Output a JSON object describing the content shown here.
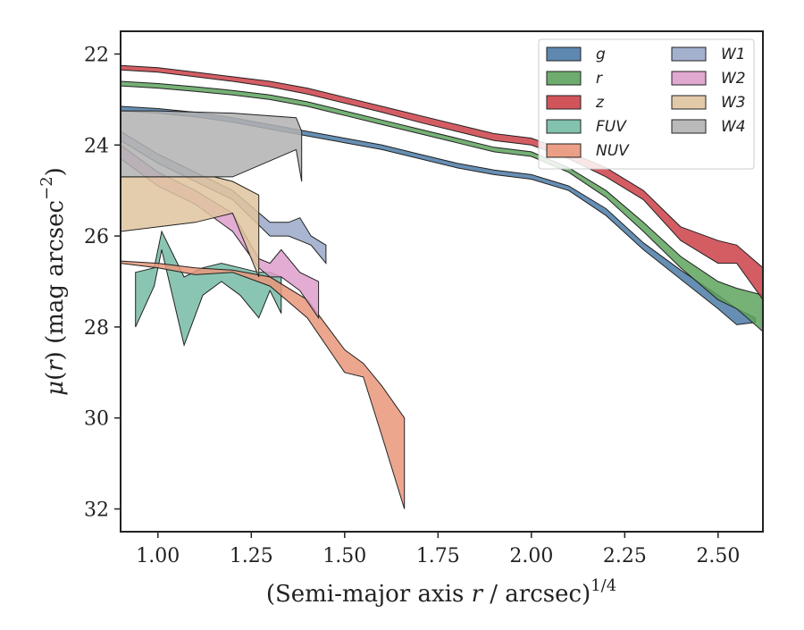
{
  "chart_data": {
    "type": "area",
    "title": "",
    "xlabel_prefix": "(Semi-major axis ",
    "xlabel_var": "r",
    "xlabel_suffix": " / arcsec)",
    "xlabel_power": "1/4",
    "ylabel_mu": "μ",
    "ylabel_open": "(",
    "ylabel_var": "r",
    "ylabel_close": ")",
    "ylabel_unit": " (mag arcsec",
    "ylabel_unit_power": "−2",
    "ylabel_unit_close": ")",
    "xlim": [
      0.9,
      2.62
    ],
    "ylim": [
      32.5,
      21.5
    ],
    "y_inverted": true,
    "xticks": [
      1.0,
      1.25,
      1.5,
      1.75,
      2.0,
      2.25,
      2.5
    ],
    "xtick_labels": [
      "1.00",
      "1.25",
      "1.50",
      "1.75",
      "2.00",
      "2.25",
      "2.50"
    ],
    "yticks": [
      22,
      24,
      26,
      28,
      30,
      32
    ],
    "ytick_labels": [
      "22",
      "24",
      "26",
      "28",
      "30",
      "32"
    ],
    "grid": false,
    "legend_position": "top-right",
    "legend_columns": 2,
    "series": [
      {
        "name": "g",
        "color": "#4c7ba7",
        "x": [
          0.9,
          1.0,
          1.1,
          1.2,
          1.3,
          1.4,
          1.5,
          1.6,
          1.7,
          1.8,
          1.9,
          2.0,
          2.1,
          2.2,
          2.3,
          2.4,
          2.5,
          2.55,
          2.6
        ],
        "y_upper": [
          23.15,
          23.2,
          23.28,
          23.4,
          23.55,
          23.7,
          23.85,
          24.0,
          24.2,
          24.4,
          24.55,
          24.65,
          24.9,
          25.4,
          26.15,
          26.75,
          27.3,
          27.6,
          27.8
        ],
        "y_lower": [
          23.25,
          23.3,
          23.38,
          23.5,
          23.65,
          23.8,
          23.95,
          24.1,
          24.3,
          24.5,
          24.65,
          24.75,
          25.0,
          25.55,
          26.3,
          26.95,
          27.6,
          27.95,
          27.9
        ]
      },
      {
        "name": "r",
        "color": "#5ea35e",
        "x": [
          0.9,
          1.0,
          1.1,
          1.2,
          1.3,
          1.4,
          1.5,
          1.6,
          1.7,
          1.8,
          1.9,
          2.0,
          2.1,
          2.2,
          2.3,
          2.4,
          2.5,
          2.55,
          2.62
        ],
        "y_upper": [
          22.6,
          22.65,
          22.72,
          22.8,
          22.9,
          23.05,
          23.25,
          23.45,
          23.65,
          23.85,
          24.05,
          24.15,
          24.5,
          25.0,
          25.7,
          26.45,
          27.0,
          27.15,
          27.3
        ],
        "y_lower": [
          22.7,
          22.75,
          22.82,
          22.9,
          23.0,
          23.15,
          23.35,
          23.55,
          23.75,
          23.95,
          24.15,
          24.25,
          24.6,
          25.15,
          25.9,
          26.7,
          27.4,
          27.6,
          28.1
        ]
      },
      {
        "name": "z",
        "color": "#cd4149",
        "x": [
          0.9,
          1.0,
          1.1,
          1.2,
          1.3,
          1.4,
          1.5,
          1.6,
          1.7,
          1.8,
          1.9,
          2.0,
          2.1,
          2.2,
          2.3,
          2.4,
          2.5,
          2.55,
          2.62
        ],
        "y_upper": [
          22.25,
          22.3,
          22.4,
          22.5,
          22.6,
          22.75,
          22.95,
          23.15,
          23.35,
          23.55,
          23.75,
          23.85,
          24.15,
          24.5,
          25.0,
          25.8,
          26.1,
          26.2,
          26.7
        ],
        "y_lower": [
          22.35,
          22.4,
          22.5,
          22.6,
          22.72,
          22.88,
          23.08,
          23.28,
          23.5,
          23.7,
          23.9,
          24.0,
          24.3,
          24.7,
          25.2,
          26.1,
          26.6,
          26.6,
          27.4
        ]
      },
      {
        "name": "FUV",
        "color": "#75bba6",
        "x": [
          0.94,
          0.99,
          1.01,
          1.07,
          1.12,
          1.17,
          1.22,
          1.27,
          1.3,
          1.33
        ],
        "y_upper": [
          26.8,
          26.7,
          25.9,
          26.9,
          26.7,
          26.6,
          26.7,
          26.8,
          26.8,
          26.9
        ],
        "y_lower": [
          28.0,
          27.1,
          26.3,
          28.4,
          27.3,
          27.0,
          27.3,
          27.8,
          27.2,
          27.7
        ]
      },
      {
        "name": "NUV",
        "color": "#e9967a",
        "x": [
          0.9,
          1.0,
          1.1,
          1.2,
          1.3,
          1.4,
          1.5,
          1.55,
          1.6,
          1.66
        ],
        "y_upper": [
          26.55,
          26.6,
          26.7,
          26.75,
          26.9,
          27.4,
          28.5,
          28.8,
          29.3,
          30.0
        ],
        "y_lower": [
          26.6,
          26.7,
          26.85,
          26.8,
          27.1,
          27.8,
          29.0,
          29.1,
          30.4,
          32.0
        ]
      },
      {
        "name": "W1",
        "color": "#9aa8c9",
        "x": [
          0.9,
          1.0,
          1.1,
          1.2,
          1.3,
          1.35,
          1.38,
          1.41,
          1.45
        ],
        "y_upper": [
          23.7,
          24.2,
          24.6,
          25.0,
          25.7,
          25.7,
          25.6,
          26.0,
          26.2
        ],
        "y_lower": [
          23.9,
          24.4,
          24.8,
          25.2,
          26.0,
          26.0,
          26.1,
          26.2,
          26.6
        ]
      },
      {
        "name": "W2",
        "color": "#de9fcb",
        "x": [
          0.9,
          1.0,
          1.1,
          1.2,
          1.27,
          1.3,
          1.33,
          1.38,
          1.43
        ],
        "y_upper": [
          24.0,
          24.6,
          25.0,
          25.5,
          26.5,
          26.6,
          26.3,
          26.8,
          27.0
        ],
        "y_lower": [
          24.3,
          24.9,
          25.3,
          25.9,
          26.7,
          26.9,
          26.9,
          27.2,
          27.8
        ]
      },
      {
        "name": "W3",
        "color": "#dfc49f",
        "x": [
          0.9,
          1.0,
          1.1,
          1.15,
          1.2,
          1.27
        ],
        "y_upper": [
          24.7,
          24.7,
          24.7,
          24.7,
          24.8,
          25.1
        ],
        "y_lower": [
          25.9,
          25.8,
          25.7,
          25.6,
          25.5,
          26.9
        ]
      },
      {
        "name": "W4",
        "color": "#b2b2b2",
        "x": [
          0.9,
          1.0,
          1.2,
          1.37,
          1.385
        ],
        "y_upper": [
          23.25,
          23.25,
          23.3,
          23.4,
          23.7
        ],
        "y_lower": [
          24.7,
          24.7,
          24.7,
          24.1,
          24.8
        ]
      }
    ]
  }
}
